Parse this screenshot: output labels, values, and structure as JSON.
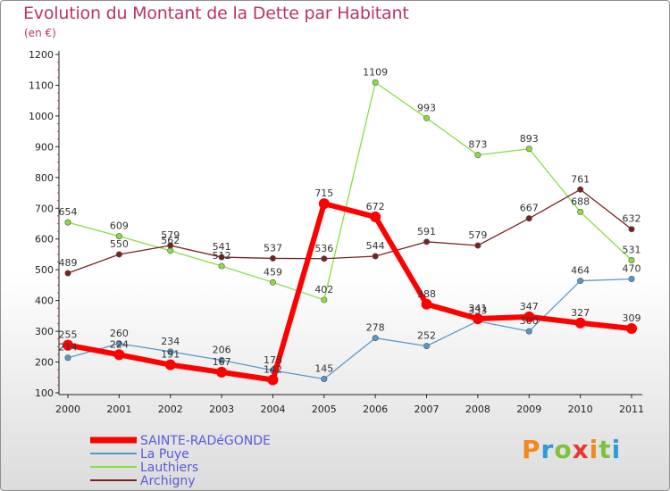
{
  "title": "Evolution du Montant de la Dette par Habitant",
  "subtitle": "(en €)",
  "logo": "Proxiti",
  "colors": {
    "title": "#b8336a",
    "logo_colors": [
      "#f08a1c",
      "#2c9cd8",
      "#7fc241",
      "#e53935",
      "#f08a1c",
      "#7fc241",
      "#2c9cd8"
    ]
  },
  "chart_data": {
    "type": "line",
    "x": [
      "2000",
      "2001",
      "2002",
      "2003",
      "2004",
      "2005",
      "2006",
      "2007",
      "2008",
      "2009",
      "2010",
      "2011"
    ],
    "ylim": [
      100,
      1200
    ],
    "yticks": [
      100,
      200,
      300,
      400,
      500,
      600,
      700,
      800,
      900,
      1000,
      1100,
      1200
    ],
    "grid": false,
    "legend_position": "bottom-left",
    "series": [
      {
        "name": "SAINTE-RADéGONDE",
        "color": "#ff0000",
        "legend_color": "#5a5ad8",
        "values": [
          255,
          224,
          191,
          167,
          142,
          715,
          672,
          388,
          341,
          347,
          327,
          309
        ],
        "labels": [
          "255",
          "224",
          "191",
          "167",
          "142",
          "715",
          "672",
          "388",
          "341",
          "347",
          "327",
          "309"
        ]
      },
      {
        "name": "La Puye",
        "color": "#5599cc",
        "legend_color": "#5a5ad8",
        "values": [
          214,
          260,
          234,
          206,
          173,
          145,
          278,
          252,
          333,
          300,
          464,
          470
        ],
        "labels": [
          "214",
          "260",
          "234",
          "206",
          "173",
          "145",
          "278",
          "252",
          "333",
          "300",
          "464",
          "470"
        ]
      },
      {
        "name": "Lauthiers",
        "color": "#88dd44",
        "legend_color": "#5a5ad8",
        "values": [
          654,
          609,
          562,
          512,
          459,
          402,
          1109,
          993,
          873,
          893,
          688,
          531
        ],
        "labels": [
          "654",
          "609",
          "562",
          "512",
          "459",
          "402",
          "1109",
          "993",
          "873",
          "893",
          "688",
          "531"
        ]
      },
      {
        "name": "Archigny",
        "color": "#772222",
        "legend_color": "#5a5ad8",
        "values": [
          489,
          550,
          579,
          541,
          537,
          536,
          544,
          591,
          579,
          667,
          761,
          632
        ],
        "labels": [
          "489",
          "550",
          "579",
          "541",
          "537",
          "536",
          "544",
          "591",
          "579",
          "667",
          "761",
          "632"
        ]
      }
    ]
  }
}
